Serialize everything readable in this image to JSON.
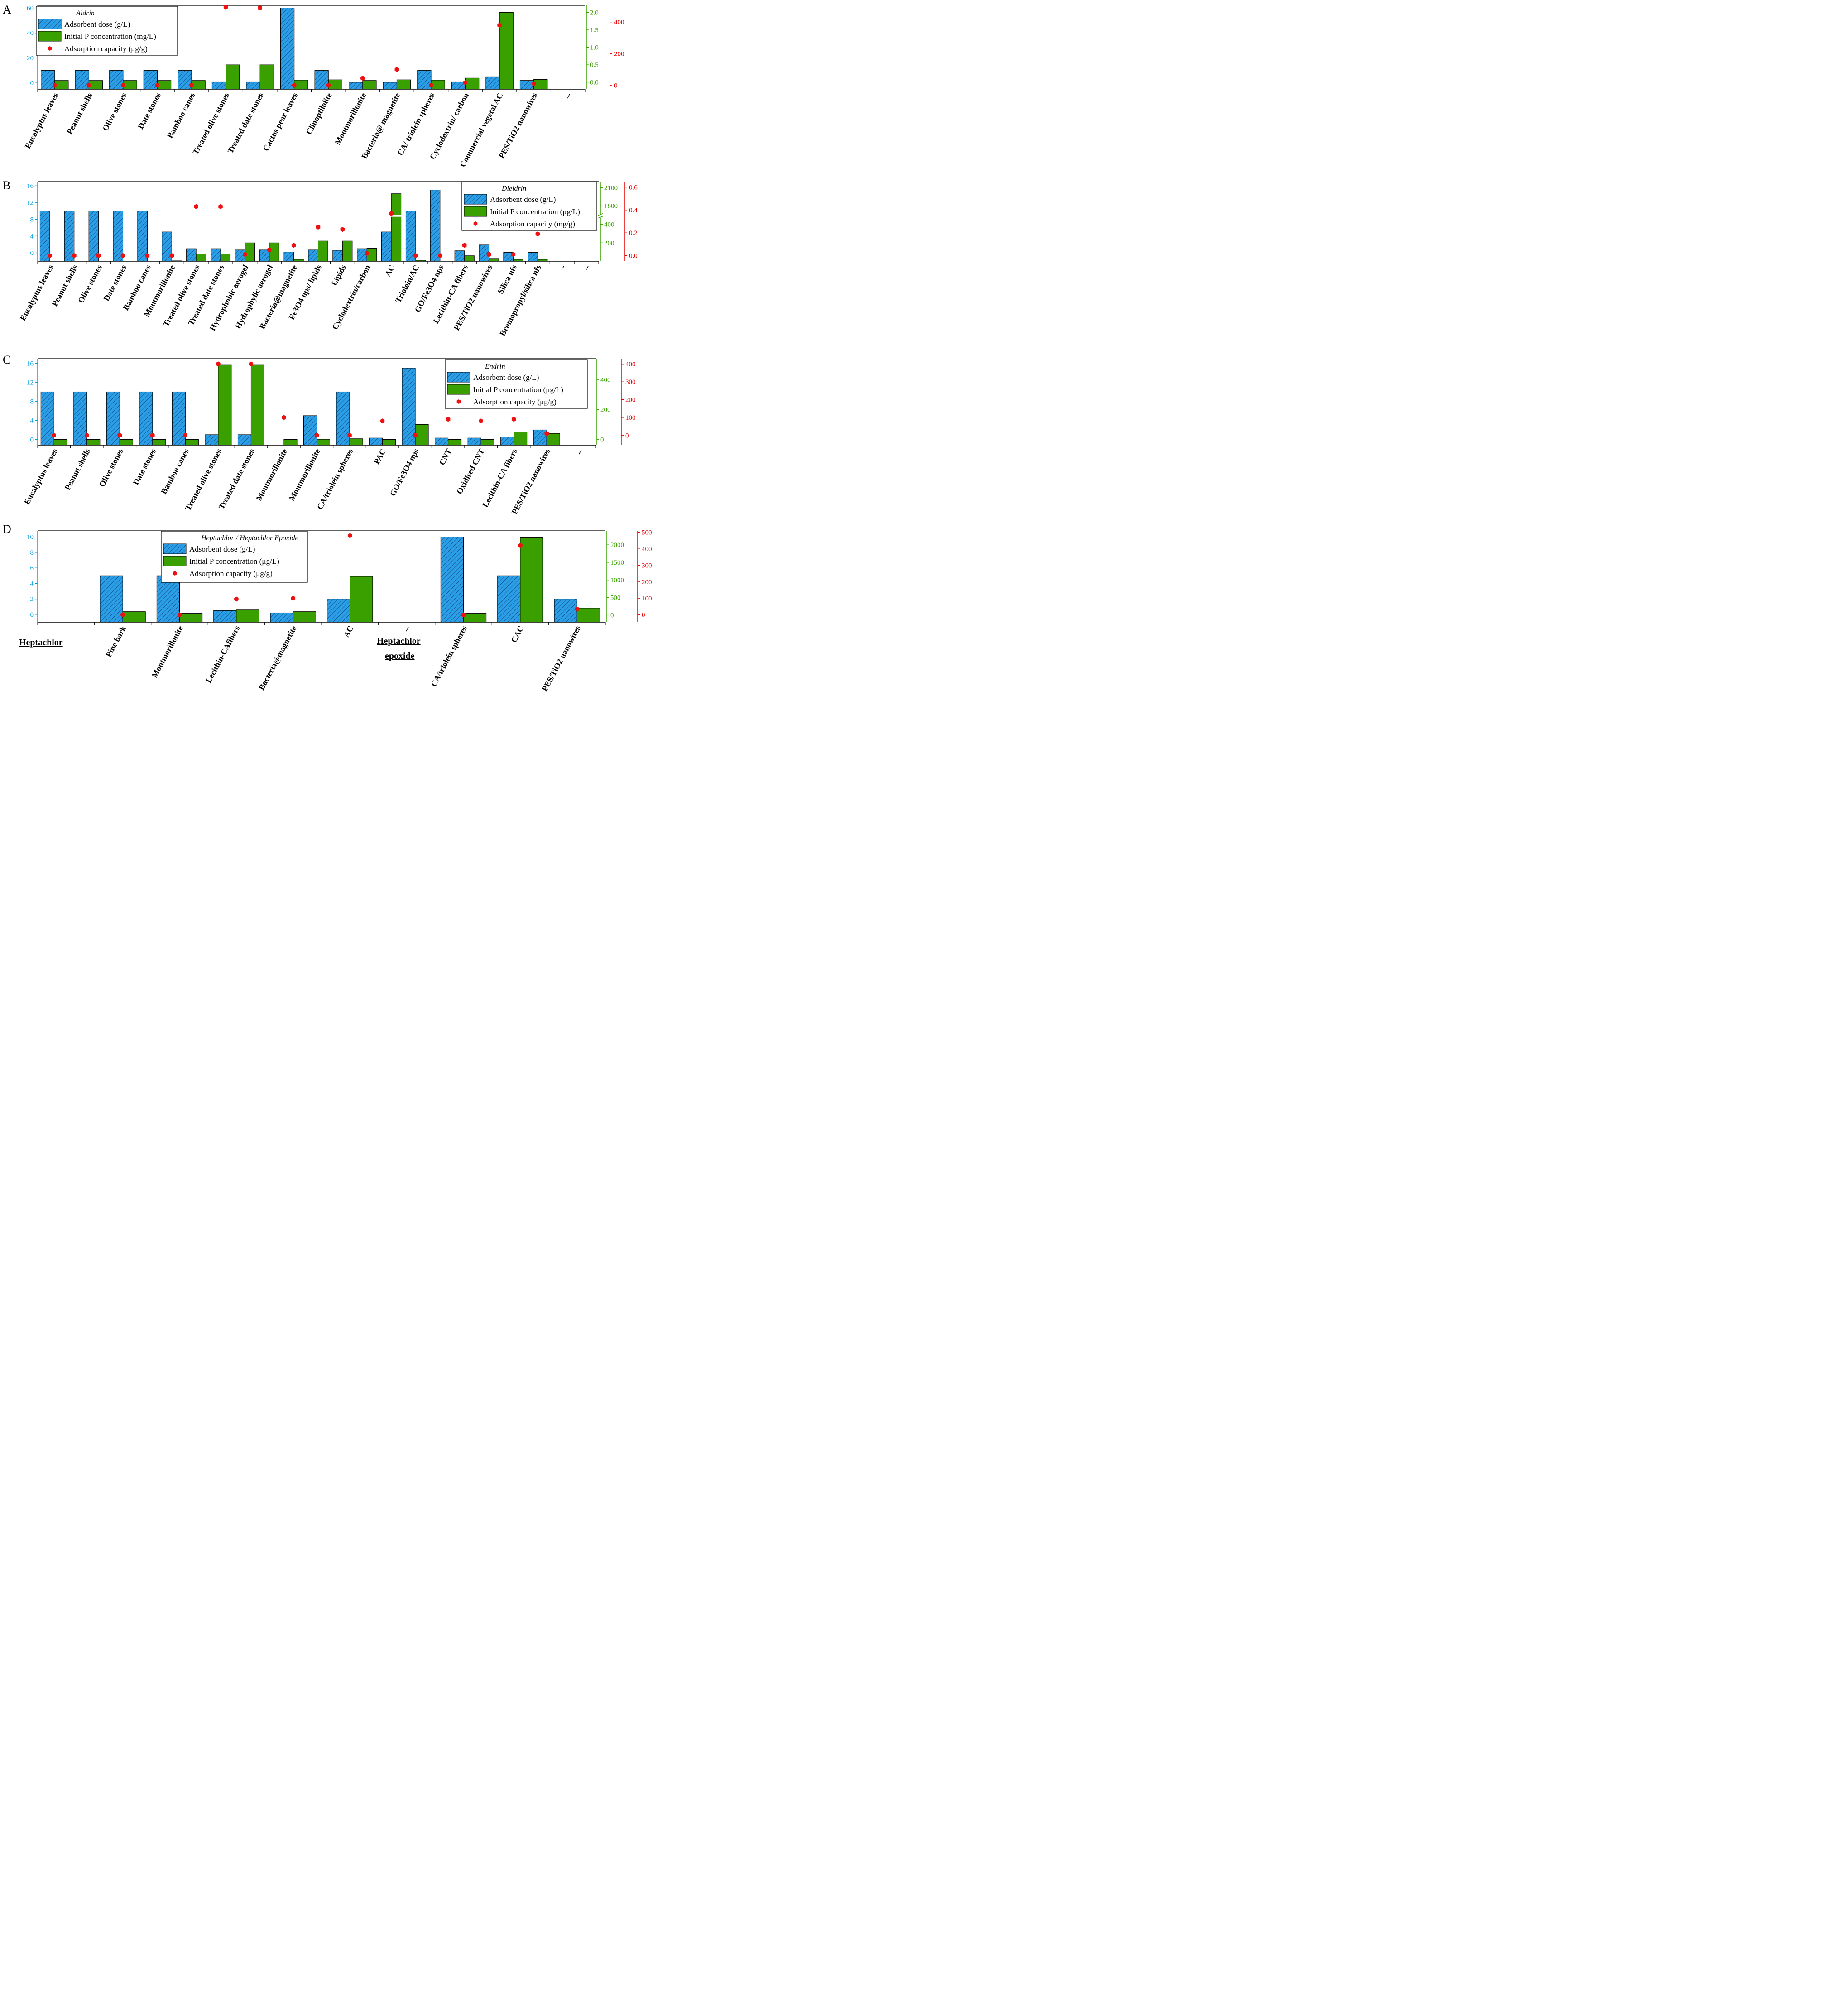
{
  "figure": {
    "legend_labels": {
      "dose": "Adsorbent dose (g/L)",
      "conc_mg": "Initial P concentration (mg/L)",
      "conc_ug": "Initial P concentration (μg/L)",
      "cap_ug": "Adsorption capacity (μg/g)",
      "cap_mg": "Adsorption capacity (mg/g)"
    },
    "colors": {
      "dose": "#2a9fe8",
      "conc": "#3aa000",
      "cap": "#ee1111",
      "dose_axis": "#00a0e6",
      "conc_axis": "#3aa000",
      "cap_axis": "#e60000"
    }
  },
  "chart_data": [
    {
      "panel": "A",
      "type": "bar",
      "title": "Aldrin",
      "conc_unit": "mg/L",
      "cap_unit": "μg/g",
      "categories": [
        "Eucalyptus leaves",
        "Peanut shells",
        "Olive stones",
        "Date stones",
        "Bamboo canes",
        "Treated olive stones",
        "Treated date stones",
        "Cactus pear leaves",
        "Clinoptilolite",
        "Montmorillonite",
        "Bacteria@ magnetite",
        "CA/ triolein spheres",
        "Cyclodextrin/ carbon",
        "Commercial vegetal AC",
        "PES/TiO2 nanowires",
        "--"
      ],
      "series": [
        {
          "name": "Adsorbent dose (g/L)",
          "axis": "left",
          "values": [
            10,
            10,
            10,
            10,
            10,
            1,
            1,
            60,
            10,
            0.5,
            0.5,
            10,
            1,
            5,
            2,
            null
          ]
        },
        {
          "name": "Initial P concentration (mg/L)",
          "axis": "mid",
          "values": [
            0.05,
            0.05,
            0.05,
            0.05,
            0.05,
            0.5,
            0.5,
            0.06,
            0.07,
            0.05,
            0.07,
            0.06,
            0.12,
            2.0,
            0.08,
            null
          ]
        },
        {
          "name": "Adsorption capacity (μg/g)",
          "axis": "right",
          "values": [
            0,
            0,
            0,
            0,
            0,
            495,
            490,
            0,
            0,
            45,
            100,
            0,
            17,
            380,
            10,
            null
          ]
        }
      ],
      "axes": {
        "left": {
          "min": -5,
          "max": 62,
          "ticks": [
            0,
            20,
            40,
            60
          ]
        },
        "mid": {
          "min": -0.2,
          "max": 2.2,
          "ticks": [
            0.0,
            0.5,
            1.0,
            1.5,
            2.0
          ],
          "labels": [
            "0.0",
            "0.5",
            "1.0",
            "1.5",
            "2.0"
          ]
        },
        "right": {
          "min": -25,
          "max": 505,
          "ticks": [
            0,
            200,
            400
          ],
          "labels": [
            "0",
            "200",
            "400"
          ]
        }
      },
      "legend": {
        "title": "Aldrin",
        "position": "top-left"
      }
    },
    {
      "panel": "B",
      "type": "bar",
      "title": "Dieldrin",
      "conc_unit": "μg/L",
      "cap_unit": "mg/g",
      "categories": [
        "Eucalyptus leaves",
        "Peanut shells",
        "Olive stones",
        "Date stones",
        "Bamboo canes",
        "Montmorillonite",
        "Treated olive stones",
        "Treated date stones",
        "Hydrophobic aerogel",
        "Hydrophylic aerogel",
        "Bacteria@magnetite",
        "Fe3O4 nps/ lipids",
        "Lipids",
        "Cyclodextrin/carbon",
        "AC",
        "Triolein/AC",
        "GO/Fe3O4 nps",
        "Lecithin-CA fibers",
        "PES/TiO2 nanowires",
        "Silica nfs",
        "Bromopropyl/silica nfs",
        "--",
        "--"
      ],
      "series": [
        {
          "name": "Adsorbent dose (g/L)",
          "axis": "left",
          "values": [
            10,
            10,
            10,
            10,
            10,
            5,
            1,
            1,
            0.7,
            0.7,
            0.2,
            0.7,
            0.6,
            1,
            5,
            10,
            15,
            0.5,
            2,
            0.1,
            0.1,
            null,
            null
          ]
        },
        {
          "name": "Initial P concentration (μg/L)",
          "axis": "mid",
          "values": [
            null,
            null,
            null,
            null,
            null,
            5,
            1000,
            1000,
            200,
            200,
            20,
            220,
            220,
            140,
            2000,
            10,
            null,
            60,
            30,
            20,
            20,
            null,
            null
          ]
        },
        {
          "name": "Adsorption capacity (mg/g)",
          "axis": "right",
          "values": [
            0,
            0,
            0,
            0,
            0,
            0,
            0.43,
            0.43,
            0.01,
            0.05,
            0.09,
            0.25,
            0.23,
            0.02,
            0.37,
            0,
            0,
            0.09,
            0.01,
            0.01,
            0.19,
            null,
            null
          ]
        }
      ],
      "axes": {
        "left": {
          "min": -2,
          "max": 17,
          "ticks": [
            0,
            4,
            8,
            12,
            16
          ]
        },
        "mid": {
          "min": 0,
          "max": 2200,
          "ticks": [
            200,
            400,
            1800,
            2100
          ],
          "labels": [
            "200",
            "400",
            "1800",
            "2100"
          ],
          "break": [
            450,
            1700
          ]
        },
        "right": {
          "min": -0.05,
          "max": 0.65,
          "ticks": [
            0.0,
            0.2,
            0.4,
            0.6
          ],
          "labels": [
            "0.0",
            "0.2",
            "0.4",
            "0.6"
          ]
        }
      },
      "legend": {
        "title": "Dieldrin",
        "position": "top-right"
      }
    },
    {
      "panel": "C",
      "type": "bar",
      "title": "Endrin",
      "conc_unit": "μg/L",
      "cap_unit": "μg/g",
      "categories": [
        "Eucalyptus leaves",
        "Peanut shells",
        "Olive stones",
        "Date stones",
        "Bamboo canes",
        "Treated olive stones",
        "Treated date stones",
        "Montmorillonite",
        "Montmorillonite",
        "CA/triolein spheres",
        "PAC",
        "GO/Fe3O4 nps",
        "CNT",
        "Oxidised CNT",
        "Lecithin-CA fibers",
        "PES/TiO2 nanowires",
        "--"
      ],
      "series": [
        {
          "name": "Adsorbent dose (g/L)",
          "axis": "left",
          "values": [
            10,
            10,
            10,
            10,
            10,
            1,
            1,
            null,
            5,
            10,
            0.3,
            15,
            0.3,
            0.3,
            0.5,
            2,
            null
          ]
        },
        {
          "name": "Initial P concentration (μg/L)",
          "axis": "mid",
          "values": [
            0,
            0,
            0,
            0,
            0,
            500,
            500,
            0,
            1,
            5,
            0,
            100,
            0,
            0,
            50,
            40,
            null
          ]
        },
        {
          "name": "Adsorption capacity (μg/g)",
          "axis": "right",
          "values": [
            0,
            0,
            0,
            0,
            0,
            400,
            400,
            100,
            0,
            0,
            80,
            0,
            90,
            80,
            90,
            10,
            null
          ]
        }
      ],
      "axes": {
        "left": {
          "min": -1.2,
          "max": 17,
          "ticks": [
            0,
            4,
            8,
            12,
            16
          ]
        },
        "mid": {
          "min": -38,
          "max": 540,
          "ticks": [
            0,
            200,
            400
          ],
          "labels": [
            "0",
            "200",
            "400"
          ]
        },
        "right": {
          "min": -55,
          "max": 430,
          "ticks": [
            0,
            100,
            200,
            300,
            400
          ],
          "labels": [
            "0",
            "100",
            "200",
            "300",
            "400"
          ]
        }
      },
      "legend": {
        "title": "Endrin",
        "position": "top-right"
      }
    },
    {
      "panel": "D",
      "type": "bar",
      "title": "Heptachlor / Heptachlor Epoxide",
      "conc_unit": "μg/L",
      "cap_unit": "μg/g",
      "group_labels": [
        "Heptachlor",
        "Heptachlor",
        "epoxide"
      ],
      "categories": [
        "Pine bark",
        "Montmorillonite",
        "Lecithin-CAfibers",
        "Bacteria@magnetite",
        "AC",
        "--",
        "CA/triolein spheres",
        "CAC",
        "PES/TiO2 nanowires"
      ],
      "series": [
        {
          "name": "Adsorbent dose (g/L)",
          "axis": "left",
          "values": [
            5,
            5,
            0.5,
            0.2,
            2,
            null,
            10,
            5,
            2
          ]
        },
        {
          "name": "Initial P concentration (μg/L)",
          "axis": "mid",
          "values": [
            100,
            50,
            150,
            100,
            1100,
            null,
            50,
            2200,
            200
          ]
        },
        {
          "name": "Adsorption capacity (μg/g)",
          "axis": "right",
          "values": [
            0,
            0,
            95,
            100,
            480,
            null,
            0,
            420,
            35
          ]
        }
      ],
      "axes": {
        "left": {
          "min": -1,
          "max": 10.8,
          "ticks": [
            0,
            2,
            4,
            6,
            8,
            10
          ]
        },
        "mid": {
          "min": -200,
          "max": 2400,
          "ticks": [
            0,
            500,
            1000,
            1500,
            2000
          ],
          "labels": [
            "0",
            "500",
            "1000",
            "1500",
            "2000"
          ]
        },
        "right": {
          "min": -45,
          "max": 510,
          "ticks": [
            0,
            100,
            200,
            300,
            400,
            500
          ],
          "labels": [
            "0",
            "100",
            "200",
            "300",
            "400",
            "500"
          ]
        }
      },
      "legend": {
        "title": "Heptachlor / Heptachlor Epoxide",
        "position": "top-center"
      }
    }
  ]
}
